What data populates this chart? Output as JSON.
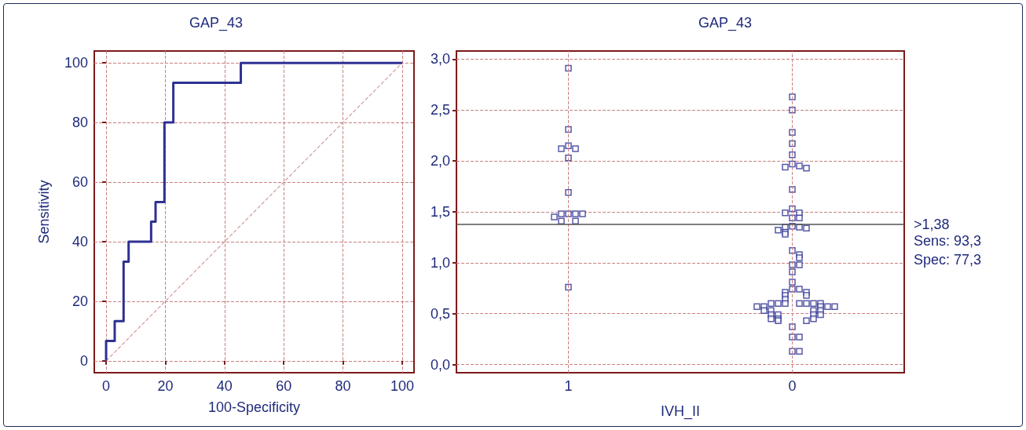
{
  "chart_data": [
    {
      "type": "step",
      "title": "GAP_43",
      "xlabel": "100-Specificity",
      "ylabel": "Sensitivity",
      "xlim": [
        -4,
        104
      ],
      "ylim": [
        -4,
        104
      ],
      "xticks": [
        0,
        20,
        40,
        60,
        80,
        100
      ],
      "yticks": [
        0,
        20,
        40,
        60,
        80,
        100
      ],
      "grid": true,
      "marker": "none",
      "series": [
        {
          "color": "#2e3192",
          "line_style": "solid",
          "x": [
            0,
            0,
            2.9,
            2.9,
            5.9,
            5.9,
            7.6,
            7.6,
            15.2,
            15.2,
            16.7,
            16.7,
            18,
            19.7,
            19.7,
            22.7,
            22.7,
            45.5,
            45.5,
            100
          ],
          "values": [
            0,
            6.7,
            6.7,
            13.3,
            13.3,
            33.3,
            33.3,
            40,
            40,
            46.7,
            46.7,
            53.3,
            53.3,
            66.7,
            80,
            80,
            93.3,
            93.3,
            100,
            100
          ]
        },
        {
          "type": "line",
          "color": "#d49a9a",
          "line_style": "dashed",
          "x": [
            0,
            100
          ],
          "values": [
            0,
            100
          ]
        }
      ]
    },
    {
      "type": "scatter",
      "title": "GAP_43",
      "xlabel": "IVH_II",
      "categories": [
        "1",
        "0"
      ],
      "ylim": [
        -0.08,
        3.08
      ],
      "yticks": [
        {
          "value": 0,
          "label": "0,0"
        },
        {
          "value": 0.5,
          "label": "0,5"
        },
        {
          "value": 1,
          "label": "1,0"
        },
        {
          "value": 1.5,
          "label": "1,5"
        },
        {
          "value": 2,
          "label": "2,0"
        },
        {
          "value": 2.5,
          "label": "2,5"
        },
        {
          "value": 3,
          "label": "3,0"
        }
      ],
      "grid": true,
      "marker": "square",
      "ref_lines": [
        {
          "axis": "y",
          "value": 1.38,
          "label": ">1,38",
          "color": "#555555"
        }
      ],
      "annotations": [
        "Sens: 93,3",
        "Spec: 77,3"
      ],
      "series": [
        {
          "color": "#2e3192",
          "x": [
            "1",
            "1",
            "1",
            "1",
            "1",
            "1",
            "1",
            "1",
            "1",
            "1",
            "1",
            "1",
            "1",
            "1",
            "1"
          ],
          "values": [
            2.91,
            2.31,
            2.15,
            2.12,
            2.12,
            2.03,
            1.69,
            1.48,
            1.48,
            1.48,
            1.48,
            1.45,
            1.41,
            1.41,
            0.76
          ]
        },
        {
          "color": "#2e3192",
          "x": [
            "0",
            "0",
            "0",
            "0",
            "0",
            "0",
            "0",
            "0",
            "0",
            "0",
            "0",
            "0",
            "0",
            "0",
            "0",
            "0",
            "0",
            "0",
            "0",
            "0",
            "0",
            "0",
            "0",
            "0",
            "0",
            "0",
            "0",
            "0",
            "0",
            "0",
            "0",
            "0",
            "0",
            "0",
            "0",
            "0",
            "0",
            "0",
            "0",
            "0",
            "0",
            "0",
            "0",
            "0",
            "0",
            "0",
            "0",
            "0",
            "0",
            "0",
            "0",
            "0",
            "0",
            "0",
            "0",
            "0",
            "0",
            "0",
            "0",
            "0",
            "0",
            "0",
            "0",
            "0",
            "0",
            "0"
          ],
          "values": [
            2.63,
            2.5,
            2.28,
            2.17,
            2.06,
            1.97,
            1.95,
            1.94,
            1.93,
            1.72,
            1.53,
            1.49,
            1.49,
            1.44,
            1.44,
            1.36,
            1.35,
            1.35,
            1.34,
            1.32,
            1.3,
            1.28,
            1.12,
            1.08,
            1.05,
            0.98,
            0.98,
            0.91,
            0.81,
            0.74,
            0.74,
            0.71,
            0.71,
            0.68,
            0.68,
            0.64,
            0.6,
            0.6,
            0.6,
            0.6,
            0.6,
            0.6,
            0.6,
            0.57,
            0.57,
            0.57,
            0.57,
            0.57,
            0.53,
            0.53,
            0.53,
            0.53,
            0.49,
            0.49,
            0.49,
            0.49,
            0.45,
            0.45,
            0.45,
            0.43,
            0.43,
            0.37,
            0.27,
            0.27,
            0.13,
            0.13
          ]
        }
      ]
    }
  ]
}
